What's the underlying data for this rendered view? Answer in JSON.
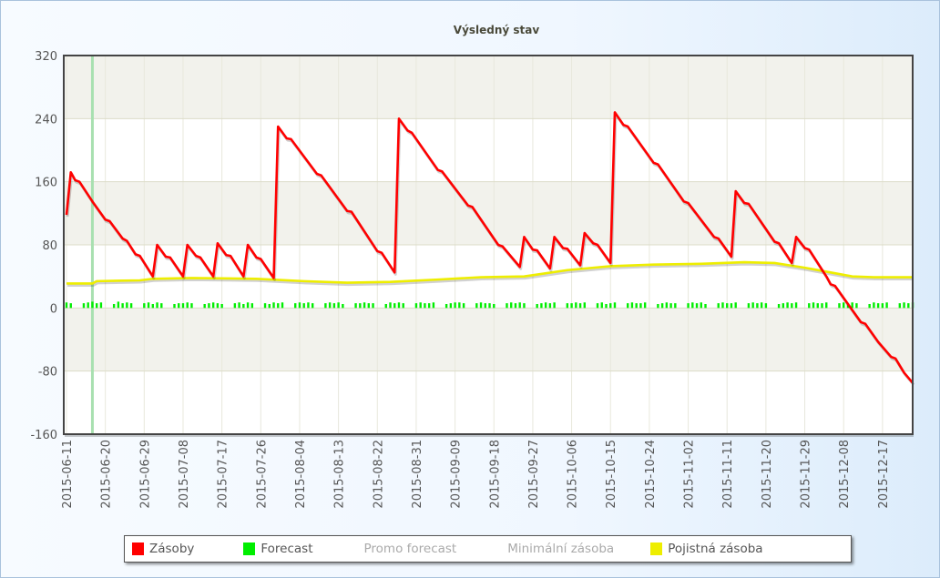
{
  "chart_data": {
    "type": "line",
    "title": "Výsledný stav",
    "ylim": [
      -160,
      320
    ],
    "yticks": [
      "320",
      "240",
      "160",
      "80",
      "0",
      "-80",
      "-160"
    ],
    "ytick_values": [
      320,
      240,
      160,
      80,
      0,
      -80,
      -160
    ],
    "x_start": "2015-06-11",
    "x_end": "2015-12-24",
    "xticks": [
      "2015-06-11",
      "2015-06-20",
      "2015-06-29",
      "2015-07-08",
      "2015-07-17",
      "2015-07-26",
      "2015-08-04",
      "2015-08-13",
      "2015-08-22",
      "2015-08-31",
      "2015-09-09",
      "2015-09-18",
      "2015-09-27",
      "2015-10-06",
      "2015-10-15",
      "2015-10-24",
      "2015-11-02",
      "2015-11-11",
      "2015-11-20",
      "2015-11-29",
      "2015-12-08",
      "2015-12-17"
    ],
    "grid": true,
    "marker_date": "2015-06-17",
    "legend_position": "bottom",
    "series": [
      {
        "name": "Zásoby",
        "color": "#ff0000",
        "points": [
          [
            "2015-06-11",
            118
          ],
          [
            "2015-06-12",
            172
          ],
          [
            "2015-06-13",
            162
          ],
          [
            "2015-06-14",
            160
          ],
          [
            "2015-06-17",
            135
          ],
          [
            "2015-06-20",
            112
          ],
          [
            "2015-06-21",
            110
          ],
          [
            "2015-06-24",
            88
          ],
          [
            "2015-06-25",
            85
          ],
          [
            "2015-06-27",
            68
          ],
          [
            "2015-06-28",
            66
          ],
          [
            "2015-07-01",
            40
          ],
          [
            "2015-07-02",
            80
          ],
          [
            "2015-07-04",
            65
          ],
          [
            "2015-07-05",
            64
          ],
          [
            "2015-07-08",
            40
          ],
          [
            "2015-07-09",
            80
          ],
          [
            "2015-07-11",
            66
          ],
          [
            "2015-07-12",
            64
          ],
          [
            "2015-07-15",
            40
          ],
          [
            "2015-07-16",
            82
          ],
          [
            "2015-07-18",
            67
          ],
          [
            "2015-07-19",
            66
          ],
          [
            "2015-07-22",
            40
          ],
          [
            "2015-07-23",
            80
          ],
          [
            "2015-07-25",
            64
          ],
          [
            "2015-07-26",
            62
          ],
          [
            "2015-07-29",
            38
          ],
          [
            "2015-07-30",
            230
          ],
          [
            "2015-08-01",
            215
          ],
          [
            "2015-08-02",
            214
          ],
          [
            "2015-08-08",
            170
          ],
          [
            "2015-08-09",
            168
          ],
          [
            "2015-08-15",
            123
          ],
          [
            "2015-08-16",
            122
          ],
          [
            "2015-08-22",
            72
          ],
          [
            "2015-08-23",
            70
          ],
          [
            "2015-08-26",
            45
          ],
          [
            "2015-08-27",
            240
          ],
          [
            "2015-08-29",
            225
          ],
          [
            "2015-08-30",
            222
          ],
          [
            "2015-09-05",
            175
          ],
          [
            "2015-09-06",
            173
          ],
          [
            "2015-09-12",
            130
          ],
          [
            "2015-09-13",
            128
          ],
          [
            "2015-09-19",
            80
          ],
          [
            "2015-09-20",
            78
          ],
          [
            "2015-09-24",
            52
          ],
          [
            "2015-09-25",
            90
          ],
          [
            "2015-09-27",
            74
          ],
          [
            "2015-09-28",
            73
          ],
          [
            "2015-10-01",
            50
          ],
          [
            "2015-10-02",
            90
          ],
          [
            "2015-10-04",
            76
          ],
          [
            "2015-10-05",
            75
          ],
          [
            "2015-10-08",
            54
          ],
          [
            "2015-10-09",
            95
          ],
          [
            "2015-10-11",
            82
          ],
          [
            "2015-10-12",
            80
          ],
          [
            "2015-10-15",
            57
          ],
          [
            "2015-10-16",
            248
          ],
          [
            "2015-10-18",
            232
          ],
          [
            "2015-10-19",
            230
          ],
          [
            "2015-10-25",
            184
          ],
          [
            "2015-10-26",
            182
          ],
          [
            "2015-11-01",
            135
          ],
          [
            "2015-11-02",
            133
          ],
          [
            "2015-11-08",
            90
          ],
          [
            "2015-11-09",
            88
          ],
          [
            "2015-11-12",
            65
          ],
          [
            "2015-11-13",
            148
          ],
          [
            "2015-11-15",
            133
          ],
          [
            "2015-11-16",
            132
          ],
          [
            "2015-11-20",
            100
          ],
          [
            "2015-11-22",
            84
          ],
          [
            "2015-11-23",
            82
          ],
          [
            "2015-11-26",
            57
          ],
          [
            "2015-11-27",
            90
          ],
          [
            "2015-11-29",
            76
          ],
          [
            "2015-11-30",
            74
          ],
          [
            "2015-12-04",
            40
          ],
          [
            "2015-12-05",
            30
          ],
          [
            "2015-12-06",
            28
          ],
          [
            "2015-12-09",
            5
          ],
          [
            "2015-12-12",
            -18
          ],
          [
            "2015-12-13",
            -20
          ],
          [
            "2015-12-16",
            -43
          ],
          [
            "2015-12-19",
            -62
          ],
          [
            "2015-12-20",
            -64
          ],
          [
            "2015-12-22",
            -82
          ],
          [
            "2015-12-24",
            -95
          ]
        ]
      },
      {
        "name": "Forecast",
        "color": "#00ee00",
        "daily_values": [
          7,
          6,
          0,
          0,
          6,
          7,
          8,
          6,
          7,
          0,
          0,
          5,
          8,
          6,
          7,
          6,
          0,
          0,
          6,
          7,
          5,
          7,
          6,
          0,
          0,
          5,
          6,
          6,
          7,
          6,
          0,
          0,
          5,
          6,
          7,
          6,
          5,
          0,
          0,
          6,
          7,
          5,
          7,
          6,
          0,
          0,
          6,
          5,
          7,
          6,
          7,
          0,
          0,
          6,
          7,
          6,
          7,
          6,
          0,
          0,
          6,
          7,
          6,
          7,
          5,
          0,
          0,
          6,
          6,
          7,
          6,
          6,
          0,
          0,
          5,
          7,
          6,
          7,
          6,
          0,
          0,
          6,
          7,
          6,
          6,
          7,
          0,
          0,
          5,
          6,
          7,
          7,
          6,
          0,
          0,
          6,
          7,
          6,
          6,
          5,
          0,
          0,
          6,
          7,
          6,
          7,
          6,
          0,
          0,
          5,
          6,
          7,
          6,
          7,
          0,
          0,
          6,
          6,
          7,
          6,
          7,
          0,
          0,
          6,
          7,
          5,
          6,
          7,
          0,
          0,
          6,
          7,
          6,
          6,
          7,
          0,
          0,
          5,
          6,
          7,
          6,
          6,
          0,
          0,
          6,
          7,
          6,
          7,
          5,
          0,
          0,
          6,
          7,
          6,
          6,
          7,
          0,
          0,
          6,
          7,
          6,
          7,
          6,
          0,
          0,
          5,
          6,
          7,
          6,
          7,
          0,
          0,
          6,
          7,
          6,
          6,
          7,
          0,
          0,
          6,
          7,
          6,
          7,
          6,
          0,
          0,
          5,
          7,
          6,
          6,
          7,
          0,
          0,
          6,
          7,
          6,
          7
        ]
      },
      {
        "name": "Promo forecast",
        "color": "#aaaaaa",
        "disabled": true
      },
      {
        "name": "Minimální zásoba",
        "color": "#aaaaaa",
        "disabled": true
      },
      {
        "name": "Pojistná zásoba",
        "color": "#eeee00",
        "points": [
          [
            "2015-06-11",
            31
          ],
          [
            "2015-06-17",
            31
          ],
          [
            "2015-06-18",
            34
          ],
          [
            "2015-06-28",
            35
          ],
          [
            "2015-07-01",
            37
          ],
          [
            "2015-07-10",
            38
          ],
          [
            "2015-07-25",
            37
          ],
          [
            "2015-08-05",
            34
          ],
          [
            "2015-08-15",
            32
          ],
          [
            "2015-08-25",
            33
          ],
          [
            "2015-09-05",
            36
          ],
          [
            "2015-09-15",
            39
          ],
          [
            "2015-09-25",
            40
          ],
          [
            "2015-10-05",
            48
          ],
          [
            "2015-10-15",
            53
          ],
          [
            "2015-10-25",
            55
          ],
          [
            "2015-11-05",
            56
          ],
          [
            "2015-11-15",
            58
          ],
          [
            "2015-11-22",
            57
          ],
          [
            "2015-11-29",
            51
          ],
          [
            "2015-12-05",
            45
          ],
          [
            "2015-12-10",
            40
          ],
          [
            "2015-12-15",
            39
          ],
          [
            "2015-12-24",
            39
          ]
        ]
      }
    ]
  }
}
